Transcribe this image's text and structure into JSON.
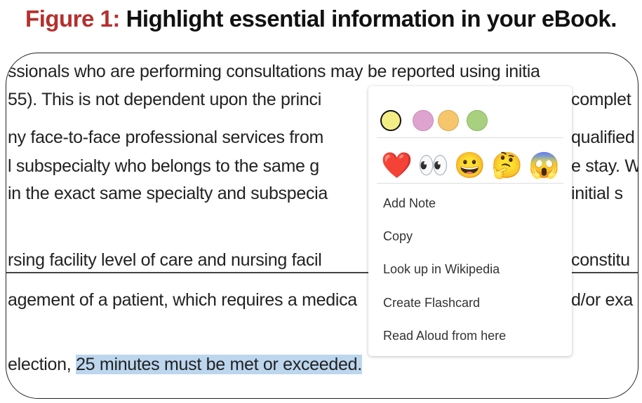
{
  "title": {
    "prefix": "Figure 1:",
    "text": "Highlight essential information in your eBook."
  },
  "lines": [
    {
      "left": "ssionals who are performing consultations may be reported using initia",
      "right": ""
    },
    {
      "left": "55). This is not dependent upon the princi",
      "right": "complet"
    },
    {
      "left": "ny face-to-face professional services from",
      "right": "qualified"
    },
    {
      "left": "l subspecialty who belongs to the same g",
      "right": "e stay. W"
    },
    {
      "left": "in the exact same specialty and subspecia",
      "right": "initial s"
    },
    {
      "left": "rsing facility level of care and nursing facil",
      "right": "constitu"
    },
    {
      "left": "agement of a patient, which requires a medica",
      "right": "d/or exa"
    },
    {
      "left": "election, ",
      "highlight": "25 minutes must be met or exceeded."
    }
  ],
  "menu": {
    "colors": [
      {
        "name": "yellow",
        "hex": "#f2ee85",
        "selected": true
      },
      {
        "name": "pink",
        "hex": "#dea4cf"
      },
      {
        "name": "orange",
        "hex": "#f6c66d"
      },
      {
        "name": "green",
        "hex": "#a8d07f"
      }
    ],
    "emojis": [
      "❤️",
      "👀",
      "😀",
      "🤔",
      "😱"
    ],
    "items": [
      "Add Note",
      "Copy",
      "Look up in Wikipedia",
      "Create Flashcard",
      "Read Aloud from here"
    ]
  }
}
